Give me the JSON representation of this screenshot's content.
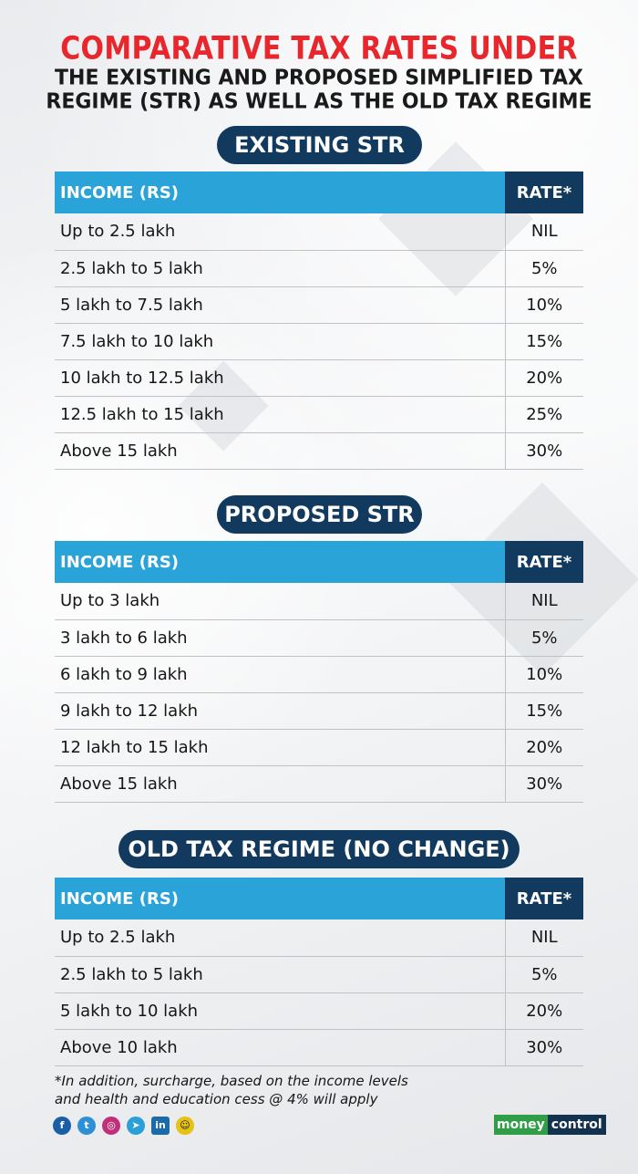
{
  "header": {
    "title": "COMPARATIVE TAX RATES UNDER",
    "subtitle_line1": "THE EXISTING AND PROPOSED SIMPLIFIED TAX",
    "subtitle_line2": "REGIME (STR) AS WELL AS THE OLD TAX REGIME"
  },
  "sections": [
    {
      "label": "EXISTING STR",
      "col_income": "INCOME (RS)",
      "col_rate": "RATE*",
      "rows": [
        {
          "income": "Up to 2.5 lakh",
          "rate": "NIL"
        },
        {
          "income": "2.5 lakh to 5 lakh",
          "rate": "5%"
        },
        {
          "income": "5 lakh to 7.5 lakh",
          "rate": "10%"
        },
        {
          "income": "7.5 lakh to 10 lakh",
          "rate": "15%"
        },
        {
          "income": "10 lakh to 12.5 lakh",
          "rate": "20%"
        },
        {
          "income": "12.5 lakh to 15 lakh",
          "rate": "25%"
        },
        {
          "income": "Above 15 lakh",
          "rate": "30%"
        }
      ]
    },
    {
      "label": "PROPOSED STR",
      "col_income": "INCOME (RS)",
      "col_rate": "RATE*",
      "rows": [
        {
          "income": "Up to 3 lakh",
          "rate": "NIL"
        },
        {
          "income": "3 lakh to 6 lakh",
          "rate": "5%"
        },
        {
          "income": "6 lakh to 9 lakh",
          "rate": "10%"
        },
        {
          "income": "9 lakh to 12 lakh",
          "rate": "15%"
        },
        {
          "income": "12 lakh to 15 lakh",
          "rate": "20%"
        },
        {
          "income": "Above 15 lakh",
          "rate": "30%"
        }
      ]
    },
    {
      "label": "OLD TAX REGIME (NO CHANGE)",
      "col_income": "INCOME (RS)",
      "col_rate": "RATE*",
      "rows": [
        {
          "income": "Up to 2.5 lakh",
          "rate": "NIL"
        },
        {
          "income": "2.5 lakh to 5 lakh",
          "rate": "5%"
        },
        {
          "income": "5 lakh to 10 lakh",
          "rate": "20%"
        },
        {
          "income": "Above 10 lakh",
          "rate": "30%"
        }
      ]
    }
  ],
  "footnote": {
    "line1": "*In addition, surcharge, based on the income levels",
    "line2": "and health and education cess @ 4% will apply"
  },
  "social_icons": [
    "facebook-icon",
    "twitter-icon",
    "instagram-icon",
    "telegram-icon",
    "linkedin-icon",
    "snapchat-icon"
  ],
  "brand": {
    "part1": "money",
    "part2": "control"
  },
  "colors": {
    "title_red": "#e8262b",
    "navy": "#123a5e",
    "header_blue": "#2aa3d8",
    "brand_green": "#2f9e47"
  }
}
